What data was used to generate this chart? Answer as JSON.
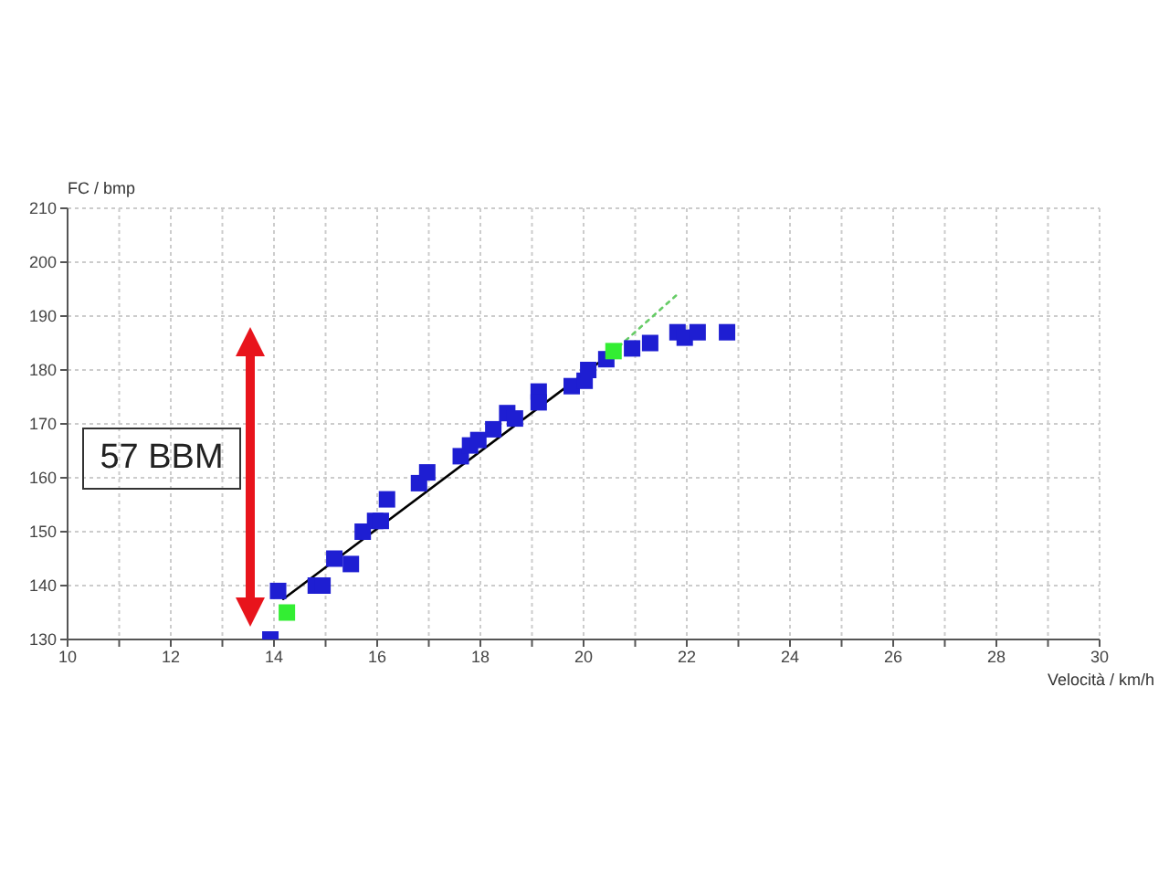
{
  "chart_data": {
    "type": "scatter",
    "xlabel": "Velocità / km/h",
    "ylabel": "FC / bmp",
    "annotations": [
      "57 BBM"
    ],
    "xlim": [
      10,
      30
    ],
    "ylim": [
      130,
      210
    ],
    "xticks": [
      10,
      {
        "value": 11,
        "label": null
      },
      12,
      {
        "value": 13,
        "label": null
      },
      14,
      {
        "value": 15,
        "label": null
      },
      16,
      {
        "value": 17,
        "label": null
      },
      18,
      {
        "value": 19,
        "label": null
      },
      20,
      {
        "value": 21,
        "label": null
      },
      22,
      {
        "value": 23,
        "label": null
      },
      24,
      {
        "value": 25,
        "label": null
      },
      26,
      {
        "value": 27,
        "label": null
      },
      28,
      {
        "value": 29,
        "label": null
      },
      30
    ],
    "yticks": [
      130,
      140,
      150,
      160,
      170,
      180,
      190,
      200,
      210
    ],
    "grid": true,
    "marker": "square",
    "series": [
      {
        "color": "#1e1ed2",
        "x": [
          13.93,
          14.08,
          14.81,
          14.94,
          15.17,
          15.49,
          15.72,
          15.96,
          16.07,
          16.19,
          16.81,
          16.97,
          17.62,
          17.8,
          17.96,
          18.25,
          18.52,
          18.67,
          19.13,
          19.13,
          19.77,
          20.02,
          20.09,
          20.44,
          20.94,
          21.29,
          21.82,
          21.96,
          22.21,
          22.78
        ],
        "values": [
          130,
          139,
          140,
          140,
          145,
          144,
          150,
          152,
          152,
          156,
          159,
          161,
          164,
          166,
          167,
          169,
          172,
          171,
          176,
          174,
          177,
          178,
          180,
          182,
          184,
          185,
          187,
          186,
          187,
          187
        ]
      },
      {
        "color": "#33ee33",
        "x": [
          14.25,
          20.58
        ],
        "values": [
          135,
          183.5
        ]
      },
      {
        "type": "line",
        "color": "#000000",
        "marker": "none",
        "line_style": "solid",
        "x": [
          14.18,
          20.55
        ],
        "values": [
          137.5,
          183.2
        ]
      },
      {
        "type": "line",
        "color": "#66cc66",
        "marker": "none",
        "line_style": "dotted",
        "x": [
          20.55,
          21.86
        ],
        "values": [
          183.2,
          194.4
        ]
      }
    ]
  }
}
